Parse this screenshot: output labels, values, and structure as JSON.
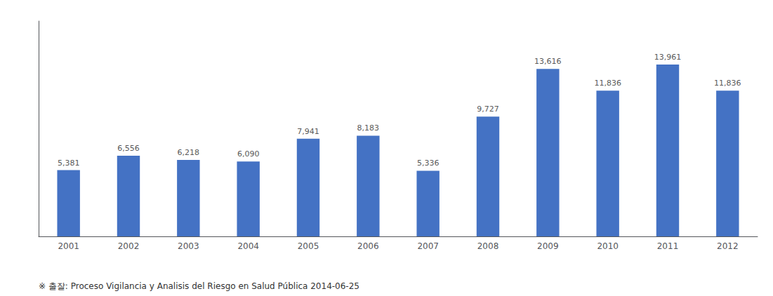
{
  "chart_data": {
    "type": "bar",
    "categories": [
      "2001",
      "2002",
      "2003",
      "2004",
      "2005",
      "2006",
      "2007",
      "2008",
      "2009",
      "2010",
      "2011",
      "2012"
    ],
    "values": [
      5381,
      6556,
      6218,
      6090,
      7941,
      8183,
      5336,
      9727,
      13616,
      11836,
      13961,
      11836
    ],
    "value_labels": [
      "5,381",
      "6,556",
      "6,218",
      "6,090",
      "7,941",
      "8,183",
      "5,336",
      "9,727",
      "13,616",
      "11,836",
      "13,961",
      "11,836"
    ],
    "data_labels": true,
    "color": "#4472C4",
    "ylim": [
      0,
      17500
    ],
    "tick_labels": "x",
    "grid": false,
    "annotations": [
      "※ 출잘: Proceso Vigilancia y Analisis del Riesgo en Salud Pública 2014-06-25"
    ]
  }
}
